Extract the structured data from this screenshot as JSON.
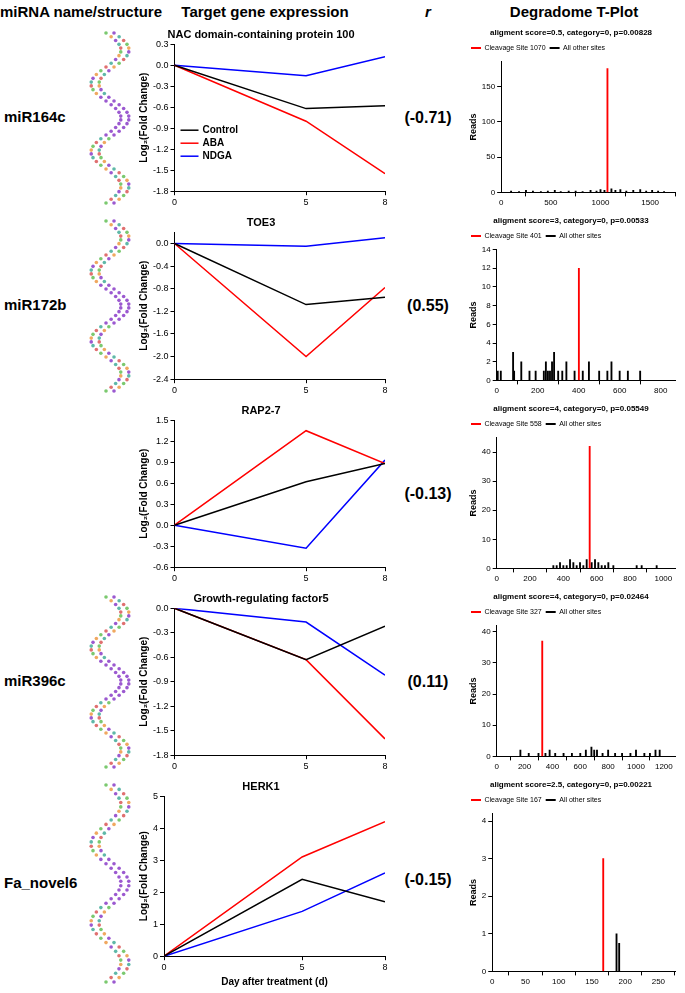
{
  "headers": [
    "miRNA name/structure",
    "Target gene expression",
    "r",
    "Degradome T-Plot"
  ],
  "rows": [
    {
      "mirna": "miR164c",
      "r": {
        "value": -0.71,
        "label": "(-0.71)"
      }
    },
    {
      "mirna": "miR172b",
      "r": {
        "value": 0.55,
        "label": "(0.55)"
      }
    },
    {
      "r": {
        "value": -0.13,
        "label": "(-0.13)"
      }
    },
    {
      "mirna": "miR396c",
      "r": {
        "value": 0.11,
        "label": "(0.11)"
      }
    },
    {
      "mirna": "Fa_novel6",
      "r": {
        "value": -0.15,
        "label": "(-0.15)"
      }
    }
  ],
  "chart_data": [
    {
      "type": "line",
      "title": "NAC domain-containing protein 100",
      "y_label": "Log₂(Fold Change)",
      "x": [
        0,
        5,
        8
      ],
      "xlim": [
        0,
        8
      ],
      "xticks": [
        0,
        5,
        8
      ],
      "ylim": [
        -1.8,
        0.3
      ],
      "yticks": [
        0.3,
        {
          "value": 0,
          "label": "0.0"
        },
        -0.3,
        -0.6,
        -0.9,
        -1.2,
        -1.5,
        -1.8
      ],
      "grid": false,
      "legend": "bottom left",
      "series": [
        {
          "name": "Control",
          "color": "#000000",
          "values": [
            0,
            -0.62,
            -0.58
          ]
        },
        {
          "name": "ABA",
          "color": "#ff0000",
          "values": [
            0,
            -0.8,
            -1.55
          ]
        },
        {
          "name": "NDGA",
          "color": "#0000ff",
          "values": [
            0,
            -0.15,
            0.12
          ]
        }
      ]
    },
    {
      "type": "bar",
      "title": "aligment score=0.5, category=0, p=0.00828",
      "y_label": "Reads",
      "xlim": [
        0,
        1750
      ],
      "xticks": [
        0,
        500,
        1000,
        1500
      ],
      "ylim": [
        0,
        185
      ],
      "yticks": [
        0,
        50,
        100,
        150
      ],
      "grid": false,
      "legend": "top",
      "series": [
        {
          "name": "Cleavage Site 1070",
          "color": "#ff0000",
          "x": [
            1070
          ],
          "values": [
            175
          ]
        },
        {
          "name": "All other sites",
          "color": "#000000",
          "x": [
            100,
            180,
            250,
            320,
            400,
            470,
            540,
            600,
            680,
            750,
            820,
            900,
            960,
            1000,
            1040,
            1110,
            1150,
            1200,
            1260,
            1330,
            1400,
            1460,
            1520,
            1580,
            1640
          ],
          "values": [
            2,
            1,
            3,
            2,
            1,
            2,
            3,
            1,
            2,
            2,
            1,
            3,
            2,
            4,
            3,
            5,
            3,
            4,
            2,
            3,
            4,
            2,
            3,
            2,
            1
          ]
        }
      ]
    },
    {
      "type": "line",
      "title": "TOE3",
      "y_label": "Log₂(Fold Change)",
      "x": [
        0,
        5,
        8
      ],
      "xlim": [
        0,
        8
      ],
      "xticks": [
        0,
        5,
        8
      ],
      "ylim": [
        -2.4,
        0.2
      ],
      "yticks": [
        {
          "value": 0,
          "label": "0.0"
        },
        -0.4,
        -0.8,
        -1.2,
        -1.6,
        {
          "value": -2,
          "label": "-2.0"
        },
        -2.4
      ],
      "grid": false,
      "series": [
        {
          "color": "#000000",
          "values": [
            0,
            -1.08,
            -0.95
          ]
        },
        {
          "color": "#ff0000",
          "values": [
            0,
            -2.0,
            -0.78
          ]
        },
        {
          "color": "#0000ff",
          "values": [
            0,
            -0.05,
            0.1
          ]
        }
      ]
    },
    {
      "type": "bar",
      "title": "aligment score=3, category=0, p=0.00533",
      "y_label": "Reads",
      "xlim": [
        0,
        870
      ],
      "xticks": [
        0,
        200,
        400,
        600,
        800
      ],
      "ylim": [
        0,
        14
      ],
      "yticks": [
        0,
        2,
        4,
        6,
        8,
        10,
        12,
        14
      ],
      "grid": false,
      "legend": "top",
      "series": [
        {
          "name": "Cleavage Site 401",
          "color": "#ff0000",
          "x": [
            401
          ],
          "values": [
            12
          ]
        },
        {
          "name": "All other sites",
          "color": "#000000",
          "x": [
            5,
            20,
            80,
            85,
            120,
            160,
            190,
            230,
            240,
            250,
            260,
            270,
            280,
            300,
            320,
            340,
            380,
            420,
            450,
            500,
            540,
            560,
            600,
            640,
            700
          ],
          "values": [
            1,
            1,
            3,
            1,
            2,
            1,
            1,
            1,
            2,
            1,
            1,
            2,
            3,
            1,
            1,
            2,
            1,
            1,
            2,
            1,
            1,
            2,
            1,
            1,
            1
          ]
        }
      ]
    },
    {
      "type": "line",
      "title": "RAP2-7",
      "y_label": "Log₂(Fold Change)",
      "x": [
        0,
        5,
        8
      ],
      "xlim": [
        0,
        8
      ],
      "xticks": [
        0,
        5,
        8
      ],
      "ylim": [
        -0.6,
        1.5
      ],
      "yticks": [
        -0.6,
        -0.3,
        {
          "value": 0,
          "label": "0.0"
        },
        0.3,
        0.6,
        0.9,
        1.2,
        1.5
      ],
      "grid": false,
      "series": [
        {
          "color": "#000000",
          "values": [
            0,
            0.62,
            0.88
          ]
        },
        {
          "color": "#ff0000",
          "values": [
            0,
            1.35,
            0.88
          ]
        },
        {
          "color": "#0000ff",
          "values": [
            0,
            -0.33,
            0.93
          ]
        }
      ]
    },
    {
      "type": "bar",
      "title": "aligment score=4, category=0, p=0.05549",
      "y_label": "Reads",
      "xlim": [
        0,
        1070
      ],
      "xticks": [
        0,
        200,
        400,
        600,
        800,
        1000
      ],
      "ylim": [
        0,
        45
      ],
      "yticks": [
        0,
        10,
        20,
        30,
        40
      ],
      "grid": false,
      "legend": "top",
      "series": [
        {
          "name": "Cleavage Site 558",
          "color": "#ff0000",
          "x": [
            558
          ],
          "values": [
            42
          ]
        },
        {
          "name": "All other sites",
          "color": "#000000",
          "x": [
            340,
            360,
            380,
            400,
            420,
            440,
            460,
            480,
            500,
            520,
            540,
            570,
            590,
            610,
            630,
            650,
            670,
            700,
            840,
            870,
            960
          ],
          "values": [
            1,
            1,
            2,
            1,
            1,
            3,
            2,
            1,
            2,
            1,
            3,
            2,
            3,
            2,
            1,
            1,
            2,
            1,
            1,
            1,
            1
          ]
        }
      ]
    },
    {
      "type": "line",
      "title": "Growth-regulating factor5",
      "y_label": "Log₂(Fold Change)",
      "x": [
        0,
        5,
        8
      ],
      "xlim": [
        0,
        8
      ],
      "xticks": [
        0,
        5,
        8
      ],
      "ylim": [
        -1.8,
        0
      ],
      "yticks": [
        {
          "value": 0,
          "label": "0.0"
        },
        -0.3,
        -0.6,
        -0.9,
        -1.2,
        -1.5,
        -1.8
      ],
      "grid": false,
      "series": [
        {
          "color": "#000000",
          "values": [
            0,
            -0.63,
            -0.22
          ]
        },
        {
          "color": "#ff0000",
          "values": [
            0,
            -0.63,
            -1.6
          ]
        },
        {
          "color": "#0000ff",
          "values": [
            0,
            -0.17,
            -0.82
          ]
        }
      ]
    },
    {
      "type": "bar",
      "title": "aligment score=4, category=0, p=0.02464",
      "y_label": "Reads",
      "xlim": [
        0,
        1280
      ],
      "xticks": [
        0,
        200,
        400,
        600,
        800,
        1000,
        1200
      ],
      "ylim": [
        0,
        42
      ],
      "yticks": [
        0,
        10,
        20,
        30,
        40
      ],
      "grid": false,
      "legend": "top",
      "series": [
        {
          "name": "Cleavage Site 327",
          "color": "#ff0000",
          "x": [
            327
          ],
          "values": [
            37
          ]
        },
        {
          "name": "All other sites",
          "color": "#000000",
          "x": [
            170,
            230,
            300,
            350,
            380,
            420,
            480,
            540,
            600,
            640,
            680,
            700,
            720,
            760,
            800,
            850,
            900,
            960,
            1000,
            1060,
            1100,
            1140,
            1170
          ],
          "values": [
            2,
            1,
            1,
            1,
            2,
            1,
            1,
            1,
            1,
            2,
            3,
            2,
            2,
            1,
            2,
            1,
            1,
            1,
            2,
            1,
            1,
            2,
            2
          ]
        }
      ]
    },
    {
      "type": "line",
      "title": "HERK1",
      "y_label": "Log₂(Fold Change)",
      "x_label": "Day after treatment (d)",
      "x": [
        0,
        5,
        8
      ],
      "xlim": [
        0,
        8
      ],
      "xticks": [
        0,
        5,
        8
      ],
      "ylim": [
        0,
        5
      ],
      "yticks": [
        0,
        1,
        2,
        3,
        4,
        5
      ],
      "grid": false,
      "series": [
        {
          "color": "#000000",
          "values": [
            0,
            2.4,
            1.7
          ]
        },
        {
          "color": "#ff0000",
          "values": [
            0,
            3.1,
            4.2
          ]
        },
        {
          "color": "#0000ff",
          "values": [
            0,
            1.4,
            2.6
          ]
        }
      ]
    },
    {
      "type": "bar",
      "title": "aligment score=2.5, category=0, p=0.00221",
      "y_label": "Reads",
      "xlim": [
        0,
        275
      ],
      "xticks": [
        0,
        50,
        100,
        150,
        200,
        250
      ],
      "ylim": [
        0,
        4.2
      ],
      "yticks": [
        0,
        1,
        2,
        3,
        4
      ],
      "grid": false,
      "legend": "top",
      "series": [
        {
          "name": "Cleavage Site 167",
          "color": "#ff0000",
          "x": [
            167
          ],
          "values": [
            3
          ]
        },
        {
          "name": "All other sites",
          "color": "#000000",
          "x": [
            187,
            191
          ],
          "values": [
            1,
            0.75
          ]
        }
      ]
    }
  ]
}
